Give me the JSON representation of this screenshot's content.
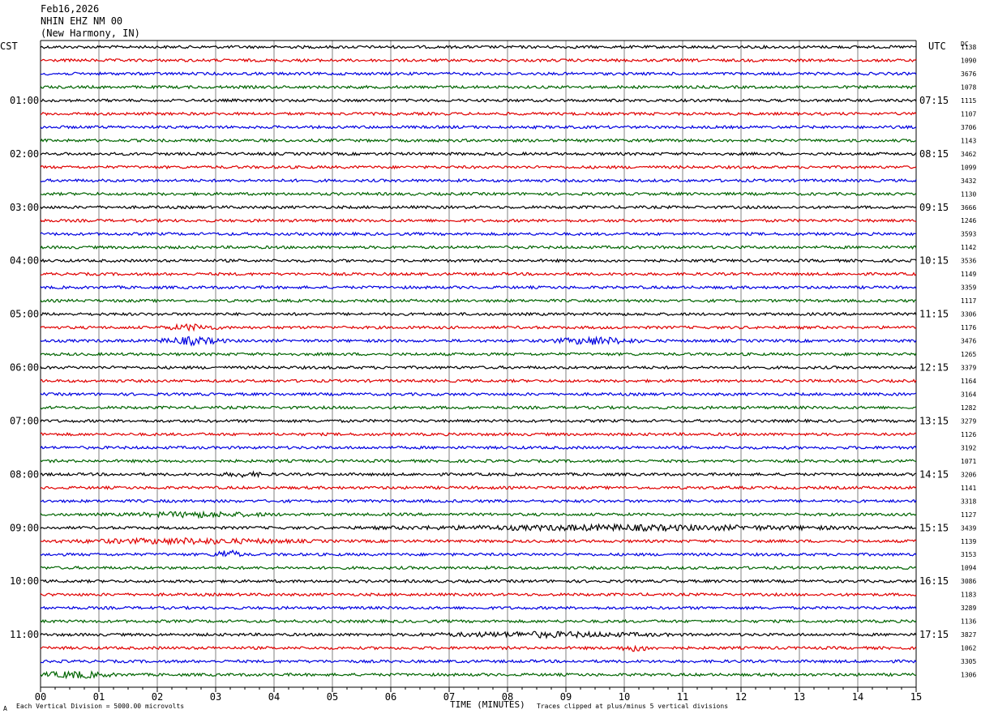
{
  "header": {
    "date": "Feb16,2026",
    "station": "NHIN EHZ NM 00",
    "location": "(New Harmony, IN)"
  },
  "left_timezone": "CST",
  "right_timezone": "UTC",
  "dc_label": "DC",
  "footer": {
    "scale_note": "Each Vertical Division = 5000.00 microvolts",
    "x_title": "TIME (MINUTES)",
    "clip_note": "Traces clipped at plus/minus 5 vertical divisions",
    "marker": "A"
  },
  "colors": {
    "black": "#000000",
    "red": "#e00000",
    "blue": "#0000e0",
    "green": "#006400",
    "grid": "#808080"
  },
  "chart_data": {
    "type": "line",
    "title": "NHIN EHZ NM 00",
    "xlabel": "TIME (MINUTES)",
    "xlim": [
      0,
      15
    ],
    "x_ticks": [
      "00",
      "01",
      "02",
      "03",
      "04",
      "05",
      "06",
      "07",
      "08",
      "09",
      "10",
      "11",
      "12",
      "13",
      "14",
      "15"
    ],
    "left_hour_labels": [
      "01:00",
      "02:00",
      "03:00",
      "04:00",
      "05:00",
      "06:00",
      "07:00",
      "08:00",
      "09:00",
      "10:00",
      "11:00"
    ],
    "right_hour_labels": [
      "07:15",
      "08:15",
      "09:15",
      "10:15",
      "11:15",
      "12:15",
      "13:15",
      "14:15",
      "15:15",
      "16:15",
      "17:15"
    ],
    "trace_colors": [
      "black",
      "red",
      "blue",
      "green"
    ],
    "trace_count": 48,
    "dc_offsets": [
      "1138",
      "1090",
      "3676",
      "1078",
      "1115",
      "1107",
      "3706",
      "1143",
      "3462",
      "1099",
      "3432",
      "1130",
      "3666",
      "1246",
      "3593",
      "1142",
      "3536",
      "1149",
      "3359",
      "1117",
      "3306",
      "1176",
      "3476",
      "1265",
      "3379",
      "1164",
      "3164",
      "1282",
      "3279",
      "1126",
      "3192",
      "1071",
      "3206",
      "1141",
      "3318",
      "1127",
      "3439",
      "1139",
      "3153",
      "1094",
      "3086",
      "1183",
      "3289",
      "1136",
      "3827",
      "1062",
      "3305",
      "1306"
    ],
    "events": [
      {
        "trace": 21,
        "minute": 2.6,
        "amp": 3.0,
        "dur": 0.6
      },
      {
        "trace": 22,
        "minute": 2.6,
        "amp": 4.0,
        "dur": 0.7
      },
      {
        "trace": 22,
        "minute": 9.5,
        "amp": 4.0,
        "dur": 0.9
      },
      {
        "trace": 32,
        "minute": 3.5,
        "amp": 2.0,
        "dur": 0.5
      },
      {
        "trace": 35,
        "minute": 2.7,
        "amp": 2.5,
        "dur": 1.5
      },
      {
        "trace": 36,
        "minute": 10.0,
        "amp": 2.5,
        "dur": 5.0
      },
      {
        "trace": 37,
        "minute": 2.5,
        "amp": 2.5,
        "dur": 2.5
      },
      {
        "trace": 38,
        "minute": 3.2,
        "amp": 5.0,
        "dur": 0.3
      },
      {
        "trace": 44,
        "minute": 8.6,
        "amp": 2.5,
        "dur": 2.5
      },
      {
        "trace": 45,
        "minute": 10.2,
        "amp": 3.0,
        "dur": 0.4
      },
      {
        "trace": 47,
        "minute": 0.6,
        "amp": 3.5,
        "dur": 0.8
      }
    ]
  }
}
